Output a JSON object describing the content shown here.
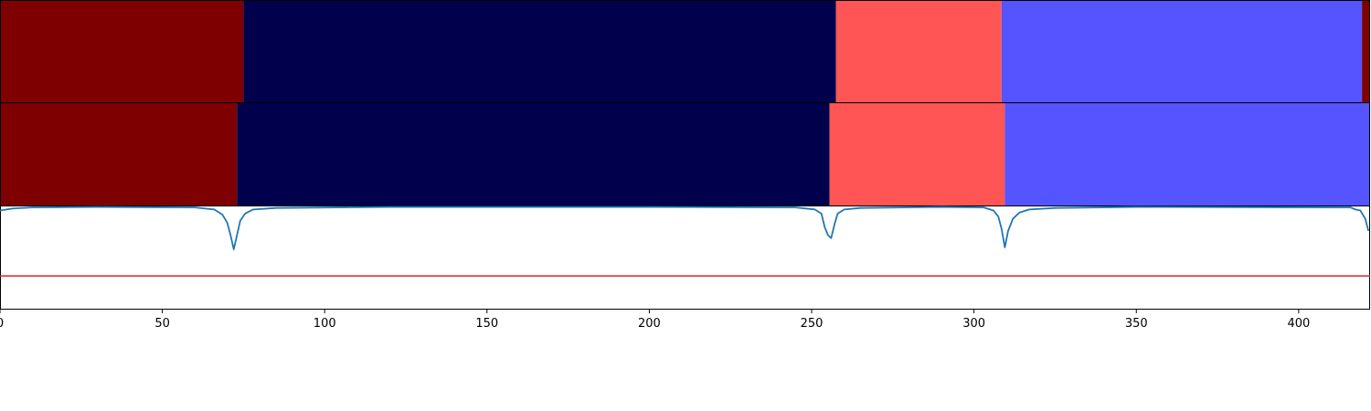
{
  "chart_data": {
    "type": "segmentation-barcode",
    "x_range": [
      0,
      422
    ],
    "x_ticks": [
      0,
      50,
      100,
      150,
      200,
      250,
      300,
      350,
      400
    ],
    "colors": {
      "dark_red": "#7f0000",
      "dark_navy": "#00004c",
      "light_red": "#ff5555",
      "light_blue": "#5555ff",
      "curve": "#1f77b4",
      "threshold": "#d62728"
    },
    "panels": [
      {
        "name": "segmentation-top",
        "segments": [
          {
            "start": 0,
            "end": 75,
            "color": "#7f0000"
          },
          {
            "start": 75,
            "end": 257.5,
            "color": "#00004c"
          },
          {
            "start": 257.5,
            "end": 308.5,
            "color": "#ff5555"
          },
          {
            "start": 308.5,
            "end": 419.5,
            "color": "#5555ff"
          },
          {
            "start": 419.5,
            "end": 422,
            "color": "#7f0000"
          }
        ]
      },
      {
        "name": "segmentation-bottom",
        "segments": [
          {
            "start": 0,
            "end": 73,
            "color": "#7f0000"
          },
          {
            "start": 73,
            "end": 255.5,
            "color": "#00004c"
          },
          {
            "start": 255.5,
            "end": 309.5,
            "color": "#ff5555"
          },
          {
            "start": 309.5,
            "end": 422,
            "color": "#5555ff"
          }
        ]
      }
    ],
    "score": {
      "ylim": [
        0,
        1
      ],
      "threshold": 0.32,
      "points": [
        [
          0,
          0.96
        ],
        [
          4,
          0.98
        ],
        [
          10,
          0.99
        ],
        [
          30,
          0.995
        ],
        [
          60,
          0.99
        ],
        [
          66,
          0.97
        ],
        [
          68.5,
          0.92
        ],
        [
          70,
          0.84
        ],
        [
          71,
          0.72
        ],
        [
          72,
          0.58
        ],
        [
          73,
          0.72
        ],
        [
          74,
          0.86
        ],
        [
          75.5,
          0.93
        ],
        [
          78,
          0.97
        ],
        [
          85,
          0.985
        ],
        [
          120,
          0.995
        ],
        [
          200,
          0.995
        ],
        [
          245,
          0.99
        ],
        [
          251,
          0.97
        ],
        [
          253,
          0.93
        ],
        [
          254,
          0.8
        ],
        [
          255,
          0.72
        ],
        [
          256,
          0.69
        ],
        [
          257,
          0.82
        ],
        [
          258,
          0.93
        ],
        [
          260,
          0.97
        ],
        [
          265,
          0.985
        ],
        [
          290,
          0.995
        ],
        [
          303,
          0.99
        ],
        [
          306,
          0.96
        ],
        [
          307.5,
          0.9
        ],
        [
          308.5,
          0.78
        ],
        [
          309.5,
          0.6
        ],
        [
          310.5,
          0.76
        ],
        [
          312,
          0.88
        ],
        [
          314,
          0.94
        ],
        [
          317,
          0.97
        ],
        [
          325,
          0.985
        ],
        [
          350,
          0.995
        ],
        [
          416,
          0.99
        ],
        [
          417.5,
          0.97
        ],
        [
          419,
          0.96
        ],
        [
          420.5,
          0.88
        ],
        [
          421.5,
          0.76
        ]
      ]
    }
  }
}
